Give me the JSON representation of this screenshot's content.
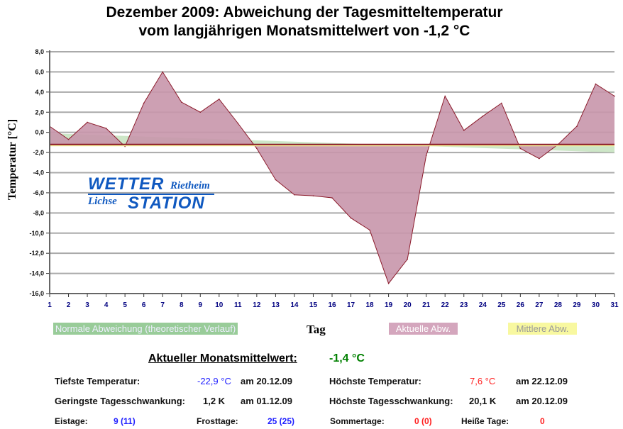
{
  "title_line1": "Dezember 2009: Abweichung der Tagesmitteltemperatur",
  "title_line2": "vom langjährigen Monatsmittelwert von -1,2 °C",
  "logo": {
    "word1": "WETTER",
    "word2": "STATION",
    "place1": "Rietheim",
    "place2": "Lichse"
  },
  "colors": {
    "actual_fill": "#c896ab",
    "actual_line": "#8b1a2a",
    "normal_fill": "#c4e2bd",
    "mean_line": "#8b1a2a",
    "mean_fill": "#f7f79a",
    "axis_tick_color": "#000080"
  },
  "chart_data": {
    "type": "area",
    "xlabel": "Tag",
    "ylabel": "Temperatur [°C]",
    "ylim": [
      -16,
      8
    ],
    "yticks": [
      "8,0",
      "6,0",
      "4,0",
      "2,0",
      "0,0",
      "-2,0",
      "-4,0",
      "-6,0",
      "-8,0",
      "-10,0",
      "-12,0",
      "-14,0",
      "-16,0"
    ],
    "x": [
      1,
      2,
      3,
      4,
      5,
      6,
      7,
      8,
      9,
      10,
      11,
      12,
      13,
      14,
      15,
      16,
      17,
      18,
      19,
      20,
      21,
      22,
      23,
      24,
      25,
      26,
      27,
      28,
      29,
      30,
      31
    ],
    "grid": true,
    "mean_value": -1.2,
    "series": [
      {
        "name": "Aktuelle Abw.",
        "values": [
          0.6,
          -0.7,
          1.0,
          0.4,
          -1.4,
          2.9,
          6.0,
          3.0,
          2.0,
          3.3,
          0.9,
          -1.6,
          -4.7,
          -6.2,
          -6.3,
          -6.5,
          -8.5,
          -9.7,
          -15.0,
          -12.6,
          -2.3,
          3.6,
          0.2,
          1.6,
          2.9,
          -1.6,
          -2.6,
          -1.2,
          0.6,
          4.8,
          3.6
        ]
      },
      {
        "name": "Normale Abweichung (theoretischer Verlauf)",
        "values_start": -0.1,
        "values_end": -2.0
      },
      {
        "name": "Mittlere Abw.",
        "value": -1.2
      }
    ],
    "legend": [
      "Normale Abweichung (theoretischer Verlauf)",
      "Aktuelle Abw.",
      "Mittlere Abw."
    ],
    "legend_placement": "bottom"
  },
  "stats": {
    "monthly_mean_label": "Aktueller Monatsmittelwert:",
    "monthly_mean_value": "-1,4 °C",
    "min_temp_label": "Tiefste Temperatur:",
    "min_temp_value": "-22,9 °C",
    "min_temp_date": "am 20.12.09",
    "max_temp_label": "Höchste Temperatur:",
    "max_temp_value": "7,6 °C",
    "max_temp_date": "am 22.12.09",
    "min_range_label": "Geringste Tagesschwankung:",
    "min_range_value": "1,2 K",
    "min_range_date": "am 01.12.09",
    "max_range_label": "Höchste Tagesschwankung:",
    "max_range_value": "20,1 K",
    "max_range_date": "am 20.12.09",
    "ice_days_label": "Eistage:",
    "ice_days_value": "9 (11)",
    "frost_days_label": "Frosttage:",
    "frost_days_value": "25 (25)",
    "summer_days_label": "Sommertage:",
    "summer_days_value": "0 (0)",
    "hot_days_label": "Heiße Tage:",
    "hot_days_value": "0"
  }
}
